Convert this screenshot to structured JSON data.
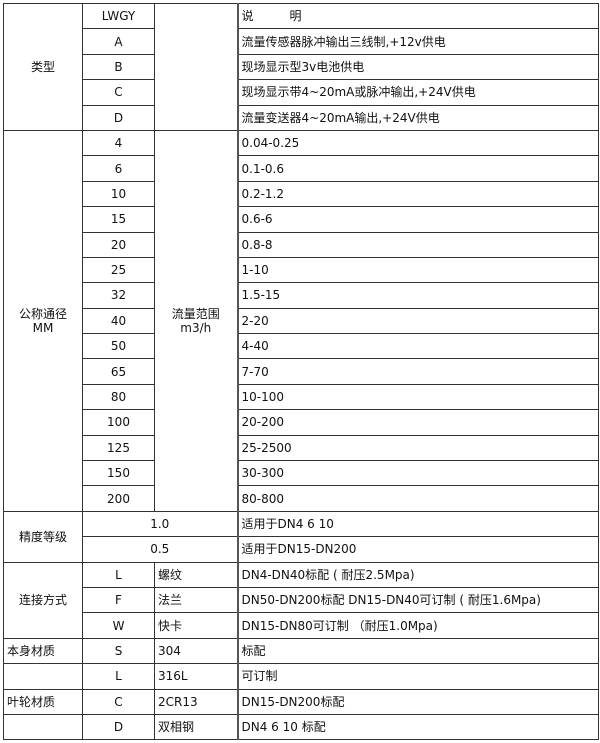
{
  "header": {
    "code": "LWGY",
    "description": "说　　　明"
  },
  "type": {
    "label": "类型",
    "rows": [
      {
        "code": "A",
        "desc": "流量传感器脉冲输出三线制,+12v供电"
      },
      {
        "code": "B",
        "desc": "现场显示型3v电池供电"
      },
      {
        "code": "C",
        "desc": "现场显示带4~20mA或脉冲输出,+24V供电"
      },
      {
        "code": "D",
        "desc": "流量变送器4~20mA输出,+24V供电"
      }
    ]
  },
  "diameter": {
    "label_line1": "公称通径",
    "label_line2": "MM",
    "range_label_line1": "流量范围",
    "range_label_line2": "m3/h",
    "rows": [
      {
        "size": "4",
        "range": "0.04-0.25"
      },
      {
        "size": "6",
        "range": "0.1-0.6"
      },
      {
        "size": "10",
        "range": "0.2-1.2"
      },
      {
        "size": "15",
        "range": "0.6-6"
      },
      {
        "size": "20",
        "range": "0.8-8"
      },
      {
        "size": "25",
        "range": "1-10"
      },
      {
        "size": "32",
        "range": "1.5-15"
      },
      {
        "size": "40",
        "range": "2-20"
      },
      {
        "size": "50",
        "range": "4-40"
      },
      {
        "size": "65",
        "range": "7-70"
      },
      {
        "size": "80",
        "range": "10-100"
      },
      {
        "size": "100",
        "range": "20-200"
      },
      {
        "size": "125",
        "range": "25-2500"
      },
      {
        "size": "150",
        "range": "30-300"
      },
      {
        "size": "200",
        "range": "80-800"
      }
    ]
  },
  "accuracy": {
    "label": "精度等级",
    "rows": [
      {
        "grade": "1.0",
        "desc": "适用于DN4  6  10"
      },
      {
        "grade": "0.5",
        "desc": "适用于DN15-DN200"
      }
    ]
  },
  "connection": {
    "label": "连接方式",
    "rows": [
      {
        "code": "L",
        "name": "螺纹",
        "desc": "DN4-DN40标配 ( 耐压2.5Mpa)"
      },
      {
        "code": "F",
        "name": "法兰",
        "desc": "DN50-DN200标配 DN15-DN40可订制 ( 耐压1.6Mpa)"
      },
      {
        "code": "W",
        "name": "快卡",
        "desc": "DN15-DN80可订制 （耐压1.0Mpa)"
      }
    ]
  },
  "materials": [
    {
      "label": "本身材质",
      "code": "S",
      "name": "304",
      "desc": "标配"
    },
    {
      "label": "",
      "code": "L",
      "name": "316L",
      "desc": "可订制"
    },
    {
      "label": "叶轮材质",
      "code": "C",
      "name": "2CR13",
      "desc": "DN15-DN200标配"
    },
    {
      "label": "",
      "code": "D",
      "name": "双相钢",
      "desc": "DN4 6 10 标配"
    }
  ]
}
